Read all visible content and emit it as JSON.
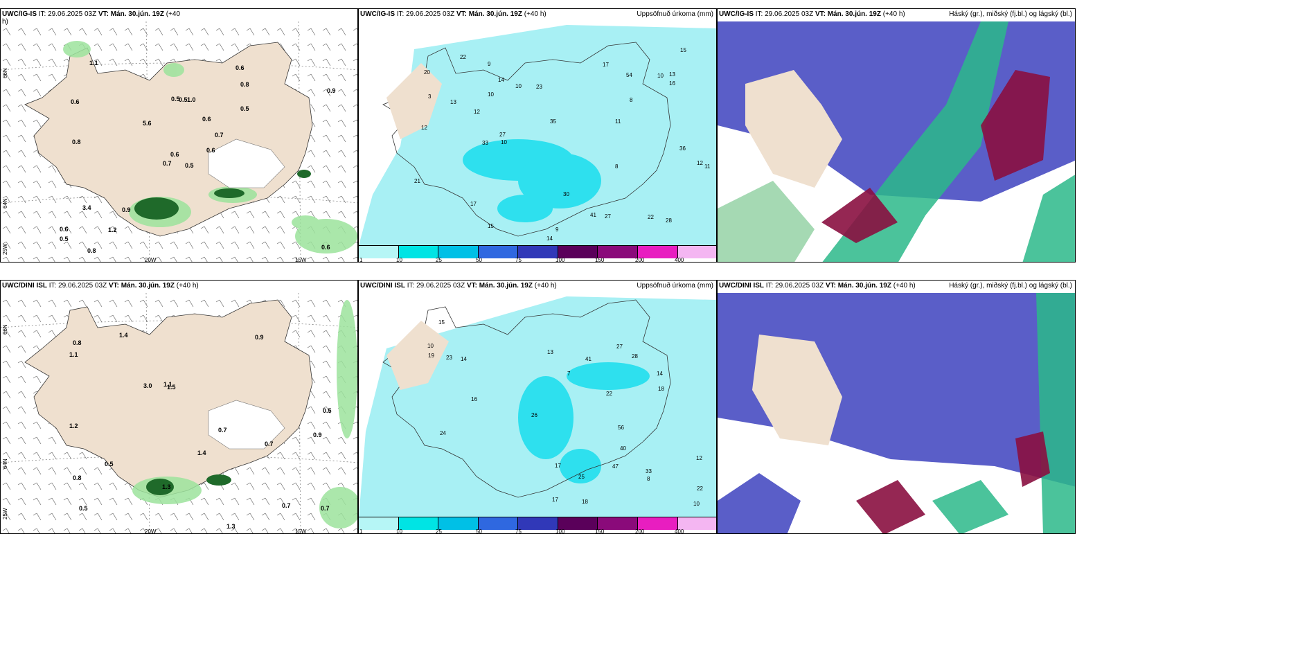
{
  "rows": [
    {
      "model": "UWC/IG-IS",
      "left": {
        "prefix": "UWC/IG-IS",
        "rest": " IT: 29.06.2025 03Z ",
        "vt": "VT: Mán. 30.jún. 19Z",
        "lead": " (+40",
        "lead2": "h)"
      },
      "mid": {
        "prefix": "UWC/IG-IS",
        "rest": " IT: 29.06.2025 03Z ",
        "vt": "VT: Mán. 30.jún. 19Z",
        "lead": " (+40 h)",
        "right": "Uppsöfnuð úrkoma (mm)"
      },
      "rightp": {
        "prefix": "UWC/IG-IS",
        "rest": " IT: 29.06.2025 03Z ",
        "vt": "VT: Mán. 30.jún. 19Z",
        "lead": " (+40 h)",
        "right": "Háský (gr.), miðský (fj.bl.) og lágský (bl.)"
      },
      "gust_values": [
        "0.5",
        "0.6",
        "0.6",
        "0.6",
        "0.7",
        "0.9",
        "0.6",
        "1.0",
        "0.8",
        "0.6",
        "1.1",
        "0.6",
        "0.8",
        "0.9",
        "0.7",
        "0.5",
        "0.8",
        "0.5",
        "0.6",
        "3.4",
        "5.6",
        "0.5",
        "1.2",
        "0.5"
      ],
      "precip_values": [
        "3",
        "10",
        "11",
        "9",
        "10",
        "14",
        "8",
        "10",
        "13",
        "11",
        "12",
        "14",
        "8",
        "17",
        "12",
        "15",
        "27",
        "23",
        "28",
        "41",
        "22",
        "36",
        "35",
        "30",
        "54",
        "12",
        "16",
        "17",
        "22",
        "33",
        "21",
        "27",
        "15",
        "13",
        "20",
        "9",
        "10"
      ]
    },
    {
      "model": "UWC/DINI ISL",
      "left": {
        "prefix": "UWC/DINI ISL",
        "rest": " IT: 29.06.2025 03Z ",
        "vt": "VT: Mán. 30.jún. 19Z",
        "lead": " (+40 h)"
      },
      "mid": {
        "prefix": "UWC/DINI ISL",
        "rest": " IT: 29.06.2025 03Z ",
        "vt": "VT: Mán. 30.jún. 19Z",
        "lead": " (+40 h)",
        "right": "Uppsöfnuð úrkoma (mm)"
      },
      "rightp": {
        "prefix": "UWC/DINI ISL",
        "rest": " IT: 29.06.2025 03Z ",
        "vt": "VT: Mán. 30.jún. 19Z",
        "lead": " (+40 h)",
        "right": "Háský (gr.), miðský (fj.bl.) og lágský (bl.)"
      },
      "gust_values": [
        "0.7",
        "0.9",
        "0.5",
        "1.4",
        "1.5",
        "0.7",
        "0.8",
        "0.9",
        "3.0",
        "1.3",
        "1.1",
        "1.2",
        "0.8",
        "0.7",
        "1.3",
        "0.5",
        "1.4",
        "0.7",
        "1.1",
        "0.5"
      ],
      "precip_values": [
        "7",
        "8",
        "10",
        "14",
        "17",
        "13",
        "18",
        "27",
        "16",
        "24",
        "33",
        "41",
        "56",
        "23",
        "22",
        "28",
        "12",
        "47",
        "25",
        "40",
        "19",
        "17",
        "22",
        "26",
        "18",
        "14",
        "15",
        "10"
      ]
    }
  ],
  "axis": {
    "lat66": "66N",
    "lat64": "64N",
    "lat63": "25W",
    "lon20": "20W",
    "lon15": "15W"
  },
  "colorbar": {
    "ticks": [
      "1",
      "10",
      "25",
      "50",
      "75",
      "100",
      "150",
      "200",
      "400"
    ],
    "colors": [
      "#b6f6f6",
      "#00e4e4",
      "#00c0e6",
      "#2f68e0",
      "#3038b8",
      "#5a005a",
      "#8a0a7a",
      "#e81ec0",
      "#f4b6f2"
    ]
  },
  "colors": {
    "land": "#efe0cf",
    "precip_light": "#a8f0f4",
    "precip_mid": "#2ee0ee",
    "cloud_high": "#5a5ec8",
    "cloud_mid": "#2cb88a",
    "cloud_low": "#8a1040",
    "gust": "#9ce39c",
    "gust_dark": "#1f6a2a"
  }
}
